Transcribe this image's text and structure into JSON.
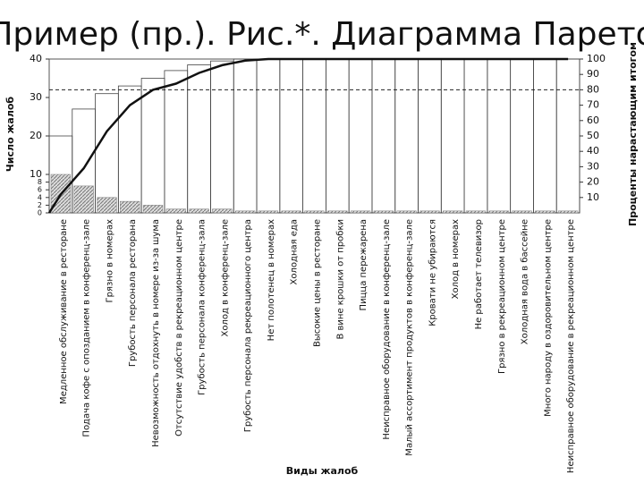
{
  "chart_data": {
    "type": "pareto",
    "title": "Пример (пр.). Рис.*. Диаграмма Парето",
    "y_label": "Число жалоб",
    "y2_label": "Проценты нарастающим итогом",
    "x_label": "Виды жалоб",
    "categories": [
      "Медленное обслуживание в ресторане",
      "Подача кофе с опозданием в конференц-зале",
      "Грязно в номерах",
      "Грубость персонала ресторана",
      "Невозможность отдохнуть в номере из-за шума",
      "Отсутствие удобств в рекреационном центре",
      "Грубость персонала конференц-зала",
      "Холод в конференц-зале",
      "Грубость персонала рекреационного центра",
      "Нет полотенец в номерах",
      "Холодная еда",
      "Высокие цены в ресторане",
      "В вине крошки от пробки",
      "Пицца пережарена",
      "Неисправное оборудование в конференц-зале",
      "Малый ассортимент продуктов в конференц-зале",
      "Кровати не убираются",
      "Холод в номерах",
      "Не работает телевизор",
      "Грязно в рекреационном центре",
      "Холодная вода в бассейне",
      "Много народу в оздоровительном центре",
      "Неисправное оборудование в рекреационном центре"
    ],
    "bars": [
      10,
      7,
      4,
      3,
      2,
      1,
      1,
      1,
      0.5,
      0.5,
      0.5,
      0.5,
      0.5,
      0.5,
      0.5,
      0.5,
      0.5,
      0.5,
      0.5,
      0.5,
      0.5,
      0.5,
      0.5
    ],
    "outline_bars": [
      20,
      27,
      31,
      33,
      35,
      37,
      38.5,
      39.5,
      40,
      40,
      40,
      40,
      40,
      40,
      40,
      40,
      40,
      40,
      40,
      40,
      40,
      40,
      40
    ],
    "cumulative_percent": [
      12,
      29,
      53,
      70,
      80,
      84,
      91,
      96,
      99,
      100,
      100,
      100,
      100,
      100,
      100,
      100,
      100,
      100,
      100,
      100,
      100,
      100,
      100
    ],
    "y2_reference": 80,
    "ylim": [
      0,
      40
    ],
    "yticks": [
      0,
      2,
      4,
      6,
      8,
      10,
      20,
      30,
      40
    ],
    "y2lim": [
      0,
      100
    ],
    "y2ticks": [
      10,
      20,
      30,
      40,
      50,
      60,
      70,
      80,
      90,
      100
    ]
  }
}
